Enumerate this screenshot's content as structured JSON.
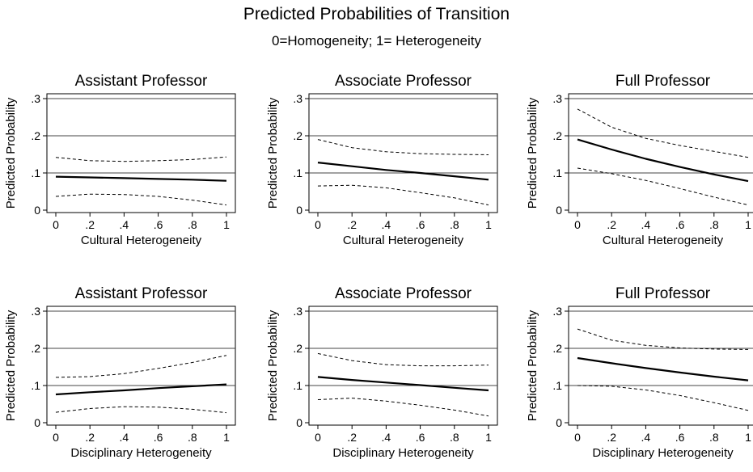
{
  "figure": {
    "title": "Predicted Probabilities of Transition",
    "subtitle": "0=Homogeneity; 1= Heterogeneity"
  },
  "chart_data": [
    {
      "type": "line",
      "title": "Assistant Professor",
      "xlabel": "Cultural Heterogeneity",
      "ylabel": "Predicted Probability",
      "xlim": [
        0,
        1
      ],
      "ylim": [
        0,
        0.3
      ],
      "xticks": [
        "0",
        ".2",
        ".4",
        ".6",
        ".8",
        "1"
      ],
      "yticks": [
        "0",
        ".1",
        ".2",
        ".3"
      ],
      "grid": true,
      "x": [
        0,
        0.2,
        0.4,
        0.6,
        0.8,
        1
      ],
      "series": [
        {
          "role": "estimate",
          "values": [
            0.09,
            0.088,
            0.086,
            0.084,
            0.082,
            0.079
          ]
        },
        {
          "role": "upper",
          "values": [
            0.142,
            0.133,
            0.131,
            0.133,
            0.136,
            0.143
          ]
        },
        {
          "role": "lower",
          "values": [
            0.037,
            0.043,
            0.042,
            0.037,
            0.027,
            0.014
          ]
        }
      ]
    },
    {
      "type": "line",
      "title": "Associate Professor",
      "xlabel": "Cultural Heterogeneity",
      "ylabel": "Predicted Probability",
      "xlim": [
        0,
        1
      ],
      "ylim": [
        0,
        0.3
      ],
      "xticks": [
        "0",
        ".2",
        ".4",
        ".6",
        ".8",
        "1"
      ],
      "yticks": [
        "0",
        ".1",
        ".2",
        ".3"
      ],
      "grid": true,
      "x": [
        0,
        0.2,
        0.4,
        0.6,
        0.8,
        1
      ],
      "series": [
        {
          "role": "estimate",
          "values": [
            0.128,
            0.118,
            0.108,
            0.1,
            0.091,
            0.082
          ]
        },
        {
          "role": "upper",
          "values": [
            0.19,
            0.168,
            0.157,
            0.152,
            0.15,
            0.149
          ]
        },
        {
          "role": "lower",
          "values": [
            0.065,
            0.067,
            0.06,
            0.047,
            0.033,
            0.014
          ]
        }
      ]
    },
    {
      "type": "line",
      "title": "Full Professor",
      "xlabel": "Cultural Heterogeneity",
      "ylabel": "Predicted Probability",
      "xlim": [
        0,
        1
      ],
      "ylim": [
        0,
        0.3
      ],
      "xticks": [
        "0",
        ".2",
        ".4",
        ".6",
        ".8",
        "1"
      ],
      "yticks": [
        "0",
        ".1",
        ".2",
        ".3"
      ],
      "grid": true,
      "x": [
        0,
        0.2,
        0.4,
        0.6,
        0.8,
        1
      ],
      "series": [
        {
          "role": "estimate",
          "values": [
            0.19,
            0.163,
            0.138,
            0.116,
            0.096,
            0.078
          ]
        },
        {
          "role": "upper",
          "values": [
            0.272,
            0.223,
            0.193,
            0.174,
            0.158,
            0.142
          ]
        },
        {
          "role": "lower",
          "values": [
            0.113,
            0.098,
            0.08,
            0.058,
            0.035,
            0.014
          ]
        }
      ]
    },
    {
      "type": "line",
      "title": "Assistant Professor",
      "xlabel": "Disciplinary Heterogeneity",
      "ylabel": "Predicted Probability",
      "xlim": [
        0,
        1
      ],
      "ylim": [
        0,
        0.3
      ],
      "xticks": [
        "0",
        ".2",
        ".4",
        ".6",
        ".8",
        "1"
      ],
      "yticks": [
        "0",
        ".1",
        ".2",
        ".3"
      ],
      "grid": true,
      "x": [
        0,
        0.2,
        0.4,
        0.6,
        0.8,
        1
      ],
      "series": [
        {
          "role": "estimate",
          "values": [
            0.076,
            0.082,
            0.087,
            0.093,
            0.098,
            0.103
          ]
        },
        {
          "role": "upper",
          "values": [
            0.122,
            0.124,
            0.132,
            0.146,
            0.162,
            0.181
          ]
        },
        {
          "role": "lower",
          "values": [
            0.028,
            0.038,
            0.043,
            0.042,
            0.036,
            0.027
          ]
        }
      ]
    },
    {
      "type": "line",
      "title": "Associate Professor",
      "xlabel": "Disciplinary Heterogeneity",
      "ylabel": "Predicted Probability",
      "xlim": [
        0,
        1
      ],
      "ylim": [
        0,
        0.3
      ],
      "xticks": [
        "0",
        ".2",
        ".4",
        ".6",
        ".8",
        "1"
      ],
      "yticks": [
        "0",
        ".1",
        ".2",
        ".3"
      ],
      "grid": true,
      "x": [
        0,
        0.2,
        0.4,
        0.6,
        0.8,
        1
      ],
      "series": [
        {
          "role": "estimate",
          "values": [
            0.123,
            0.115,
            0.108,
            0.101,
            0.094,
            0.087
          ]
        },
        {
          "role": "upper",
          "values": [
            0.186,
            0.167,
            0.156,
            0.153,
            0.153,
            0.155
          ]
        },
        {
          "role": "lower",
          "values": [
            0.062,
            0.066,
            0.058,
            0.047,
            0.034,
            0.018
          ]
        }
      ]
    },
    {
      "type": "line",
      "title": "Full Professor",
      "xlabel": "Disciplinary Heterogeneity",
      "ylabel": "Predicted Probability",
      "xlim": [
        0,
        1
      ],
      "ylim": [
        0,
        0.3
      ],
      "xticks": [
        "0",
        ".2",
        ".4",
        ".6",
        ".8",
        "1"
      ],
      "yticks": [
        "0",
        ".1",
        ".2",
        ".3"
      ],
      "grid": true,
      "x": [
        0,
        0.2,
        0.4,
        0.6,
        0.8,
        1
      ],
      "series": [
        {
          "role": "estimate",
          "values": [
            0.174,
            0.16,
            0.147,
            0.135,
            0.124,
            0.114
          ]
        },
        {
          "role": "upper",
          "values": [
            0.252,
            0.222,
            0.208,
            0.201,
            0.198,
            0.197
          ]
        },
        {
          "role": "lower",
          "values": [
            0.1,
            0.098,
            0.088,
            0.073,
            0.054,
            0.033
          ]
        }
      ]
    }
  ]
}
